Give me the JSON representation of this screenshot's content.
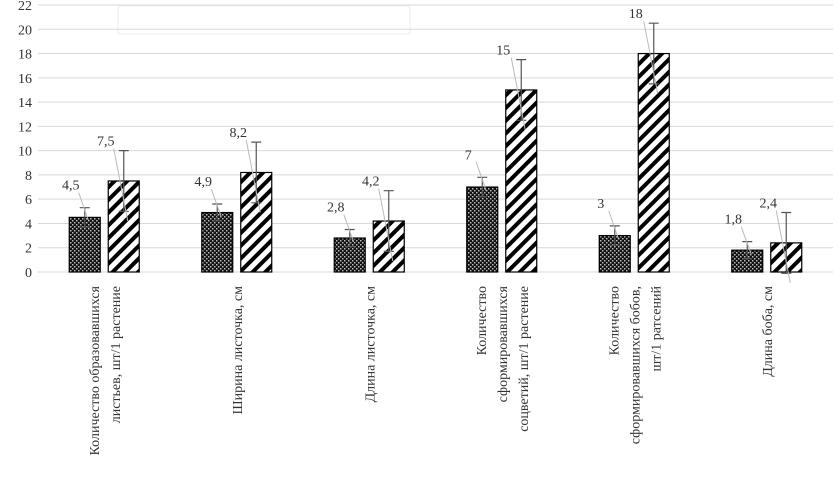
{
  "chart_data": {
    "type": "bar",
    "categories": [
      "Количество образовавшихся\nлистьев, шт/1 растение",
      "Ширина листочка, см",
      "Длина листочка, см",
      "Количество\nсформировавшихся\nсоцветий, шт/1 растение",
      "Количество\nсформировавшихся бобов,\nшт/1 ратсений",
      "Длина боба, см"
    ],
    "series": [
      {
        "color": "#000000",
        "values": [
          4.5,
          4.9,
          2.8,
          7,
          3,
          1.8
        ],
        "value_labels": [
          "4,5",
          "4,9",
          "2,8",
          "7",
          "3",
          "1,8"
        ],
        "errors": [
          0.8,
          0.7,
          0.7,
          0.8,
          0.8,
          0.7
        ]
      },
      {
        "color": "#000000",
        "values": [
          7.5,
          8.2,
          4.2,
          15,
          18,
          2.4
        ],
        "value_labels": [
          "7,5",
          "8,2",
          "4,2",
          "15",
          "18",
          "2,4"
        ],
        "errors": [
          2.5,
          2.5,
          2.5,
          2.5,
          2.5,
          2.5
        ]
      }
    ],
    "ylim": [
      0,
      22
    ],
    "yticks": [
      0,
      2,
      4,
      6,
      8,
      10,
      12,
      14,
      16,
      18,
      20,
      22
    ],
    "grid": true
  }
}
